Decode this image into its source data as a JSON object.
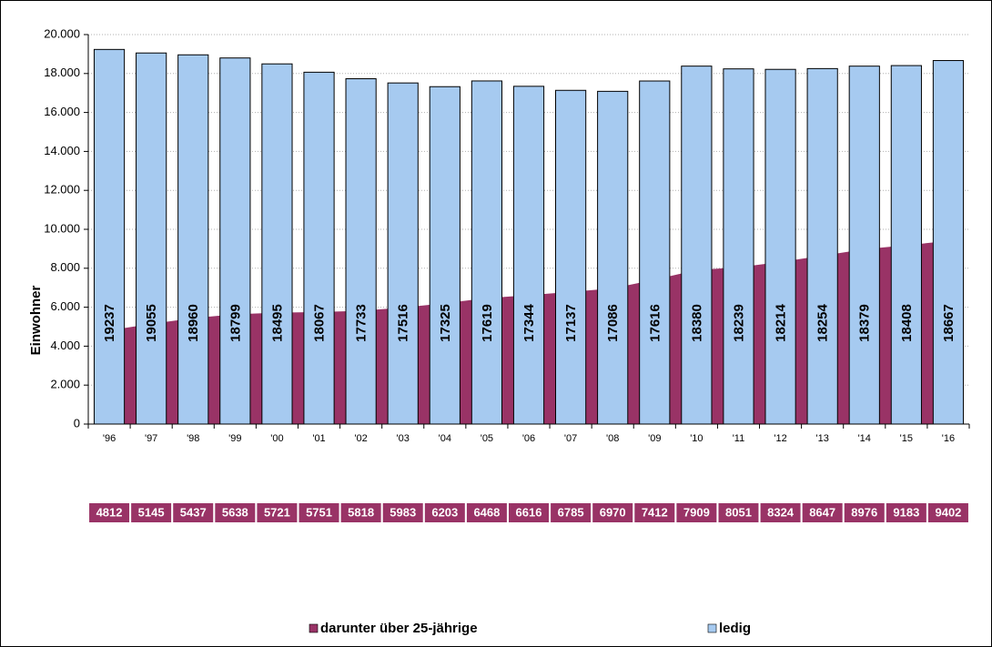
{
  "chart_data": {
    "type": "bar",
    "y_label": "Einwohner",
    "categories": [
      "'96",
      "'97",
      "'98",
      "'99",
      "'00",
      "'01",
      "'02",
      "'03",
      "'04",
      "'05",
      "'06",
      "'07",
      "'08",
      "'09",
      "'10",
      "'11",
      "'12",
      "'13",
      "'14",
      "'15",
      "'16"
    ],
    "series": [
      {
        "name": "darunter über 25-jährige",
        "color": "#993366",
        "kind": "area",
        "values": [
          4812,
          5145,
          5437,
          5638,
          5721,
          5751,
          5818,
          5983,
          6203,
          6468,
          6616,
          6785,
          6970,
          7412,
          7909,
          8051,
          8324,
          8647,
          8976,
          9183,
          9402
        ]
      },
      {
        "name": "ledig",
        "color": "#a6caf0",
        "kind": "bar",
        "values": [
          19237,
          19055,
          18960,
          18799,
          18495,
          18067,
          17733,
          17516,
          17325,
          17619,
          17344,
          17137,
          17086,
          17616,
          18380,
          18239,
          18214,
          18254,
          18379,
          18408,
          18667
        ]
      }
    ],
    "ylim": [
      0,
      20000
    ],
    "yticks": [
      0,
      {
        "value": 2000,
        "label": "2.000"
      },
      {
        "value": 4000,
        "label": "4.000"
      },
      {
        "value": 6000,
        "label": "6.000"
      },
      {
        "value": 8000,
        "label": "8.000"
      },
      {
        "value": 10000,
        "label": "10.000"
      },
      {
        "value": 12000,
        "label": "12.000"
      },
      {
        "value": 14000,
        "label": "14.000"
      },
      {
        "value": 16000,
        "label": "16.000"
      },
      {
        "value": 18000,
        "label": "18.000"
      },
      {
        "value": 20000,
        "label": "20.000"
      }
    ],
    "grid": true,
    "legend": "bottom"
  }
}
